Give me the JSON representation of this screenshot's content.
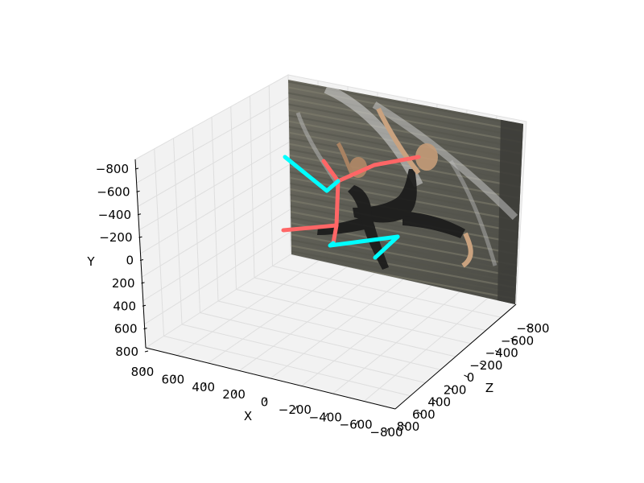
{
  "chart_data": {
    "type": "3d-line",
    "title": "",
    "xlabel": "X",
    "ylabel": "Y",
    "zlabel": "Z",
    "xlim": [
      -800,
      800
    ],
    "ylim": [
      -800,
      800
    ],
    "zlim": [
      -800,
      800
    ],
    "x_ticks": [
      "800",
      "600",
      "400",
      "200",
      "0",
      "−200",
      "−400",
      "−600",
      "−800"
    ],
    "y_ticks": [
      "−800",
      "−600",
      "−400",
      "−200",
      "0",
      "200",
      "400",
      "600",
      "800"
    ],
    "z_ticks": [
      "−800",
      "−600",
      "−400",
      "−200",
      "0",
      "200",
      "400",
      "600",
      "800"
    ],
    "grid": true,
    "background_image": "blurred photo of a leaping dancer in a black leotard in front of a corrugated metal wall",
    "skeleton": [
      {
        "color": "#ff6666",
        "side": "left",
        "segments": [
          [
            [
              520,
              195
            ],
            [
              465,
              205
            ],
            [
              420,
              225
            ]
          ],
          [
            [
              420,
              225
            ],
            [
              402,
              200
            ]
          ],
          [
            [
              420,
              225
            ],
            [
              418,
              280
            ]
          ],
          [
            [
              418,
              280
            ],
            [
              352,
              286
            ]
          ],
          [
            [
              418,
              280
            ],
            [
              414,
              302
            ]
          ]
        ]
      },
      {
        "color": "#00ffff",
        "side": "right",
        "segments": [
          [
            [
              354,
              195
            ],
            [
              406,
              237
            ],
            [
              420,
              225
            ]
          ],
          [
            [
              414,
              302
            ],
            [
              410,
              305
            ],
            [
              494,
              294
            ]
          ],
          [
            [
              494,
              294
            ],
            [
              466,
              320
            ]
          ]
        ]
      }
    ]
  }
}
